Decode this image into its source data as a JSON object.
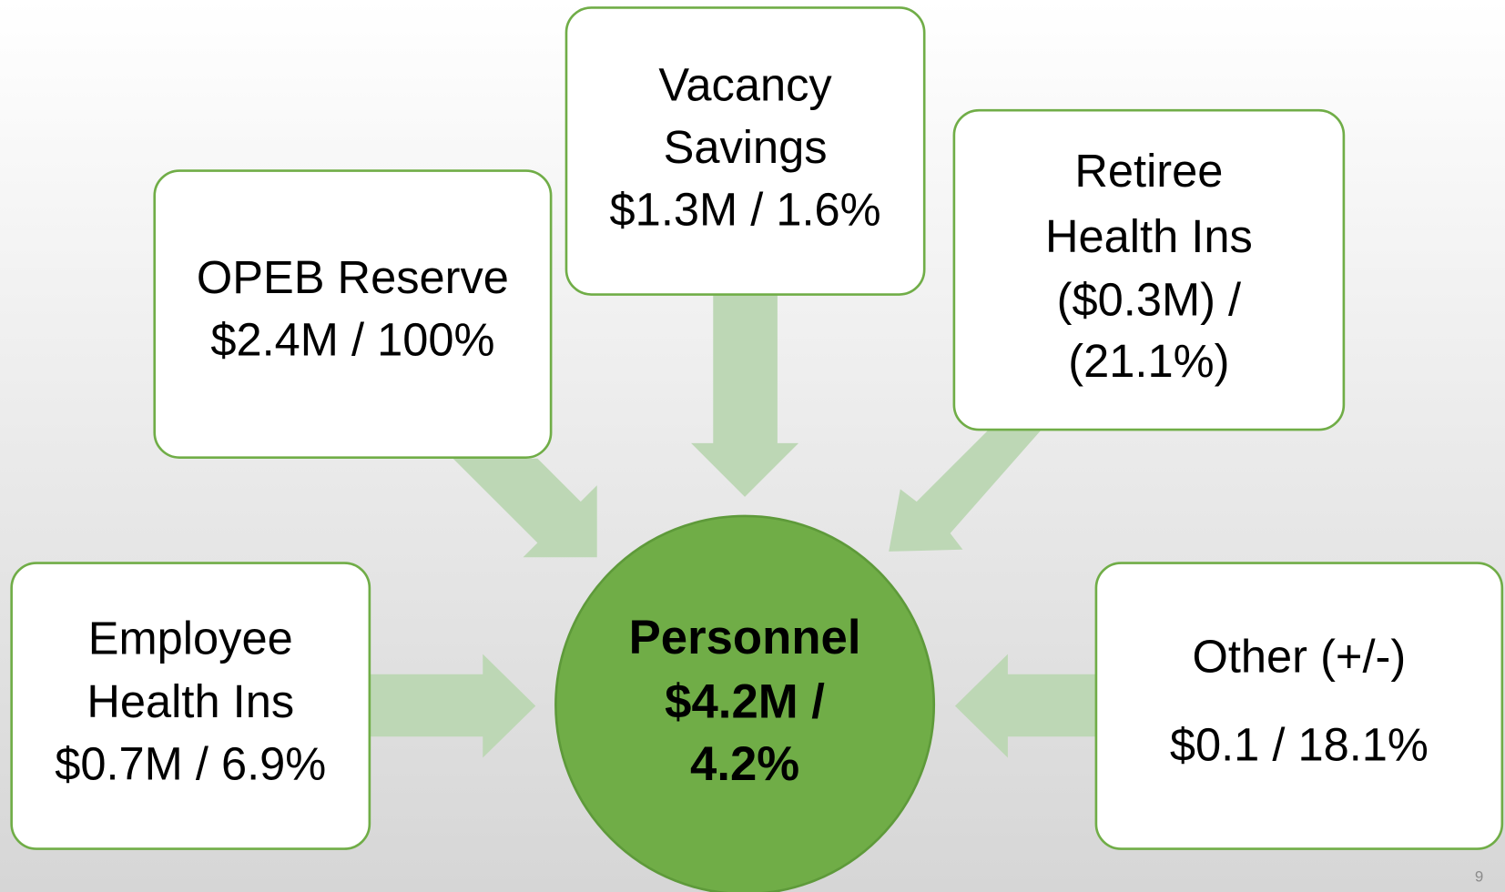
{
  "center": {
    "lines": [
      "Personnel",
      "$4.2M /",
      "4.2%"
    ]
  },
  "nodes": [
    {
      "lines": [
        "Vacancy",
        "Savings",
        "$1.3M / 1.6%"
      ]
    },
    {
      "lines": [
        "OPEB Reserve",
        "$2.4M / 100%"
      ]
    },
    {
      "lines": [
        "Retiree",
        "Health Ins",
        "($0.3M) /",
        "(21.1%)"
      ]
    },
    {
      "lines": [
        "Employee",
        "Health Ins",
        "$0.7M / 6.9%"
      ]
    },
    {
      "lines": [
        "Other (+/-)",
        "$0.1 / 18.1%"
      ]
    }
  ],
  "page_number": "9"
}
